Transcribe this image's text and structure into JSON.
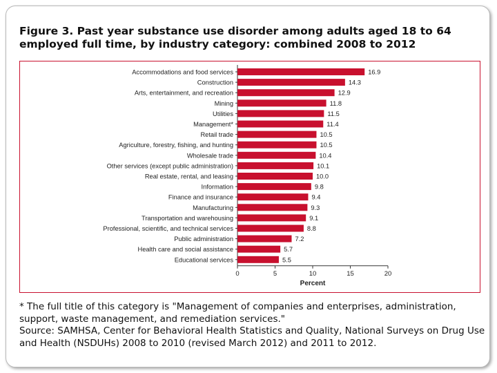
{
  "figure": {
    "title": "Figure 3. Past year substance use disorder among adults aged 18 to 64 employed full time, by industry category: combined 2008 to 2012"
  },
  "chart_data": {
    "type": "bar",
    "orientation": "horizontal",
    "title": "Figure 3. Past year substance use disorder among adults aged 18 to 64 employed full time, by industry category: combined 2008 to 2012",
    "xlabel": "Percent",
    "ylabel": "",
    "xlim": [
      0,
      20
    ],
    "xticks": [
      0,
      5,
      10,
      15,
      20
    ],
    "bar_color": "#c8102e",
    "categories": [
      "Accommodations and food services",
      "Construction",
      "Arts, entertainment, and recreation",
      "Mining",
      "Utilities",
      "Management*",
      "Retail trade",
      "Agriculture, forestry, fishing, and hunting",
      "Wholesale trade",
      "Other services (except public administration)",
      "Real estate, rental, and leasing",
      "Information",
      "Finance and insurance",
      "Manufacturing",
      "Transportation and warehousing",
      "Professional, scientific, and technical services",
      "Public administration",
      "Health care and social assistance",
      "Educational services"
    ],
    "values": [
      16.9,
      14.3,
      12.9,
      11.8,
      11.5,
      11.4,
      10.5,
      10.5,
      10.4,
      10.1,
      10.0,
      9.8,
      9.4,
      9.3,
      9.1,
      8.8,
      7.2,
      5.7,
      5.5
    ],
    "value_labels": [
      "16.9",
      "14.3",
      "12.9",
      "11.8",
      "11.5",
      "11.4",
      "10.5",
      "10.5",
      "10.4",
      "10.1",
      "10.0",
      "9.8",
      "9.4",
      "9.3",
      "9.1",
      "8.8",
      "7.2",
      "5.7",
      "5.5"
    ]
  },
  "notes": {
    "footnote": "* The full title of this category is \"Management of companies and enterprises, administration, support, waste management, and remediation services.\"",
    "source": "Source: SAMHSA, Center for Behavioral Health Statistics and Quality, National Surveys on Drug Use and Health (NSDUHs) 2008 to 2010 (revised March 2012) and 2011 to 2012."
  }
}
